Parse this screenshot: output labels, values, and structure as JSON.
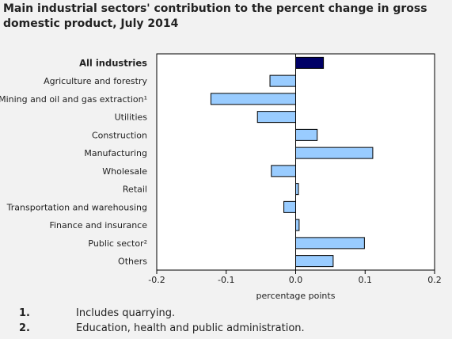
{
  "title": "Main industrial sectors' contribution to the percent change in gross domestic product, July 2014",
  "colors": {
    "bar_default": "#99ccff",
    "bar_highlight": "#000066",
    "bar_stroke": "#000000",
    "plot_background": "#ffffff",
    "page_background": "#f2f2f2"
  },
  "chart_data": {
    "type": "bar",
    "orientation": "horizontal",
    "categories": [
      "All industries",
      "Agriculture and forestry",
      "Mining and oil and gas extraction¹",
      "Utilities",
      "Construction",
      "Manufacturing",
      "Wholesale",
      "Retail",
      "Transportation and warehousing",
      "Finance and insurance",
      "Public sector²",
      "Others"
    ],
    "values": [
      0.04,
      -0.037,
      -0.122,
      -0.055,
      0.031,
      0.111,
      -0.035,
      0.004,
      -0.017,
      0.005,
      0.099,
      0.054
    ],
    "highlight_category": "All industries",
    "xlabel": "percentage points",
    "ylabel": "",
    "xlim": [
      -0.2,
      0.2
    ],
    "xticks": [
      "-0.2",
      "-0.1",
      "0.0",
      "0.1",
      "0.2"
    ],
    "grid": false
  },
  "footnotes": [
    {
      "number": "1.",
      "text": "Includes quarrying."
    },
    {
      "number": "2.",
      "text": "Education, health and public administration."
    }
  ]
}
